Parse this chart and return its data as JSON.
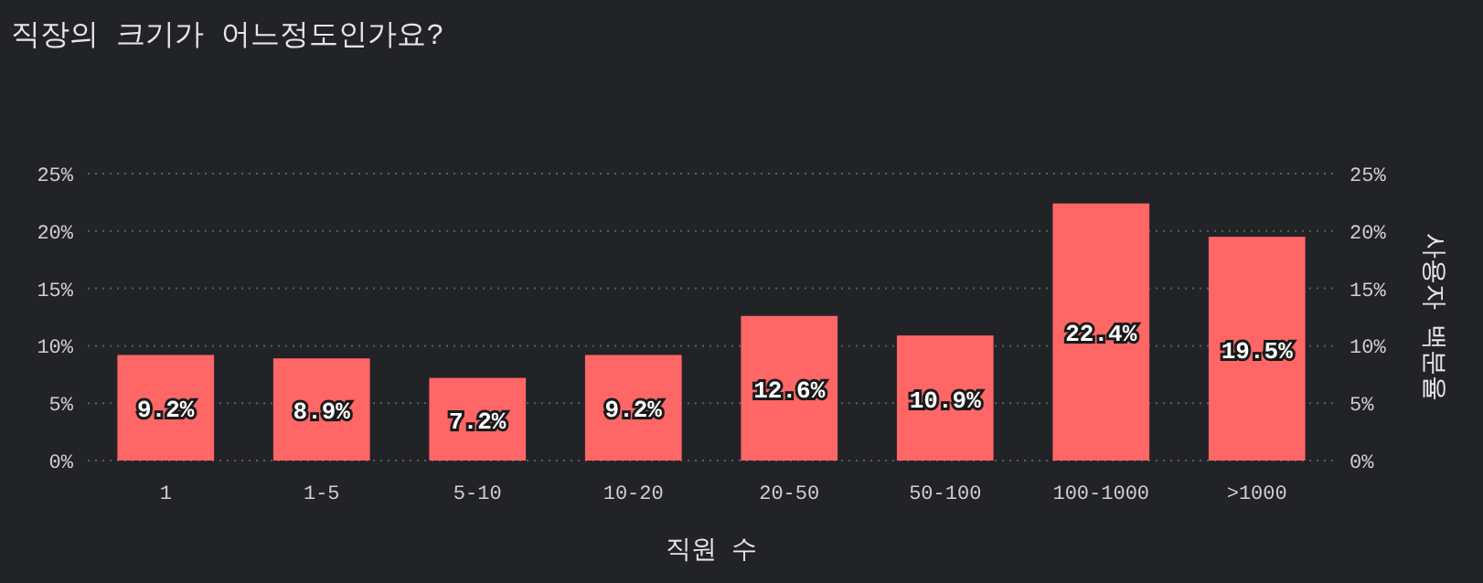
{
  "chart_data": {
    "type": "bar",
    "title": "직장의 크기가 어느정도인가요?",
    "xlabel": "직원 수",
    "y2label": "사용자 백분율",
    "categories": [
      "1",
      "1-5",
      "5-10",
      "10-20",
      "20-50",
      "50-100",
      "100-1000",
      ">1000"
    ],
    "series": [
      {
        "color": "#ff6666",
        "values": [
          9.2,
          8.9,
          7.2,
          9.2,
          12.6,
          10.9,
          22.4,
          19.5
        ]
      }
    ],
    "value_labels": [
      "9.2%",
      "8.9%",
      "7.2%",
      "9.2%",
      "12.6%",
      "10.9%",
      "22.4%",
      "19.5%"
    ],
    "ylim": [
      0,
      25
    ],
    "yticks": [
      {
        "value": 0,
        "label": "0%"
      },
      {
        "value": 5,
        "label": "5%"
      },
      {
        "value": 10,
        "label": "10%"
      },
      {
        "value": 15,
        "label": "15%"
      },
      {
        "value": 20,
        "label": "20%"
      },
      {
        "value": 25,
        "label": "25%"
      }
    ],
    "y2lim": [
      0,
      25
    ],
    "y2ticks": [
      {
        "value": 0,
        "label": "0%"
      },
      {
        "value": 5,
        "label": "5%"
      },
      {
        "value": 10,
        "label": "10%"
      },
      {
        "value": 15,
        "label": "15%"
      },
      {
        "value": 20,
        "label": "20%"
      },
      {
        "value": 25,
        "label": "25%"
      }
    ],
    "grid": "y"
  }
}
